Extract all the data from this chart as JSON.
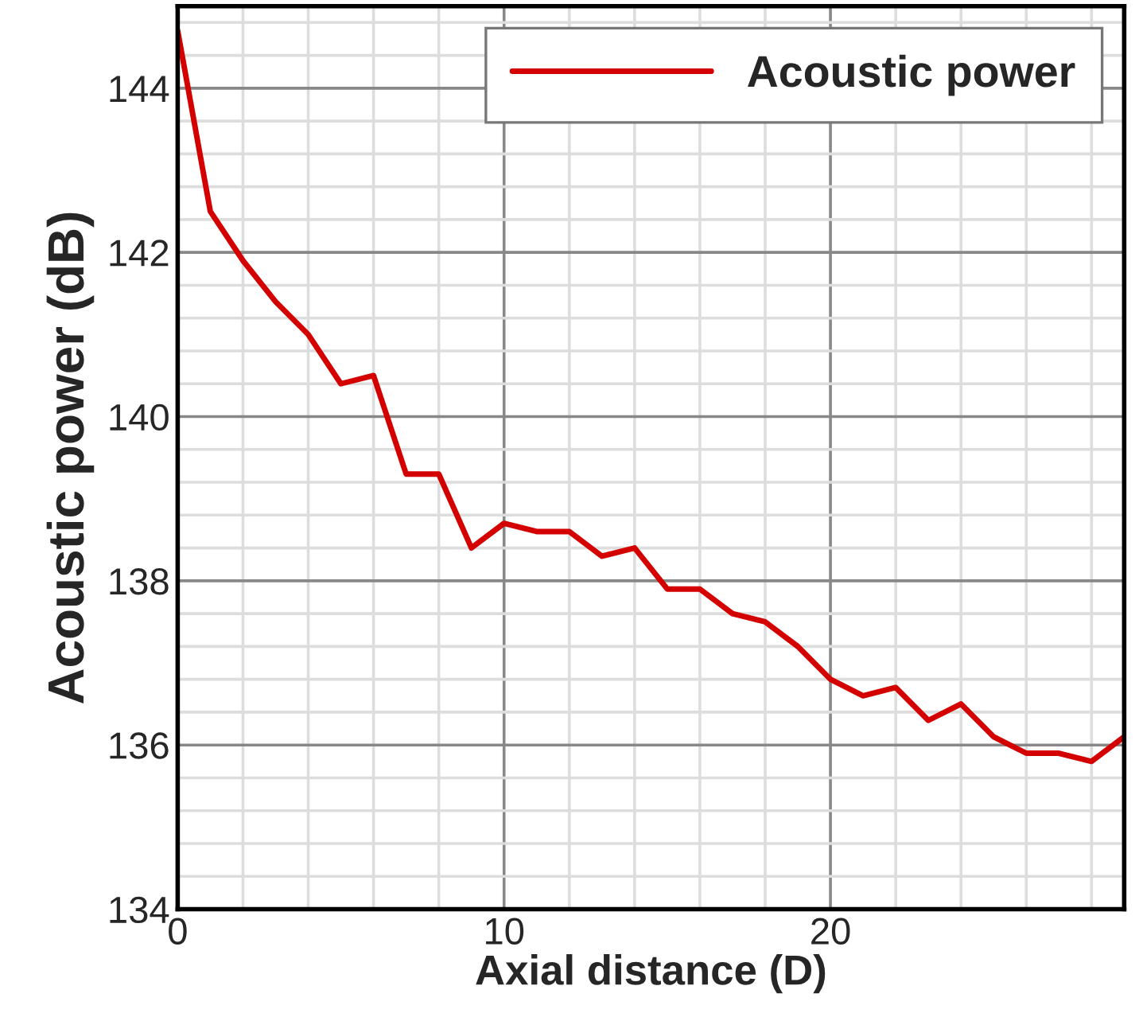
{
  "chart_data": {
    "type": "line",
    "xlabel": "Axial distance (D)",
    "ylabel": "Acoustic power (dB)",
    "x": [
      0,
      1,
      2,
      3,
      4,
      5,
      6,
      7,
      8,
      9,
      10,
      11,
      12,
      13,
      14,
      15,
      16,
      17,
      18,
      19,
      20,
      21,
      22,
      23,
      24,
      25,
      26,
      27,
      28,
      29
    ],
    "series": [
      {
        "name": "Acoustic power",
        "color": "#d40000",
        "values": [
          144.7,
          142.5,
          141.9,
          141.4,
          141.0,
          140.4,
          140.5,
          139.3,
          139.3,
          138.4,
          138.7,
          138.6,
          138.6,
          138.3,
          138.4,
          137.9,
          137.9,
          137.6,
          137.5,
          137.2,
          136.8,
          136.6,
          136.7,
          136.3,
          136.5,
          136.1,
          135.9,
          135.9,
          135.8,
          136.1
        ]
      }
    ],
    "xlim": [
      0,
      29
    ],
    "xticks": [
      0,
      10,
      20
    ],
    "ylim": [
      134,
      145
    ],
    "yticks": [
      134,
      136,
      138,
      140,
      142,
      144
    ],
    "grid": true,
    "legend": "top right",
    "marker": "none",
    "line_style": "solid"
  }
}
